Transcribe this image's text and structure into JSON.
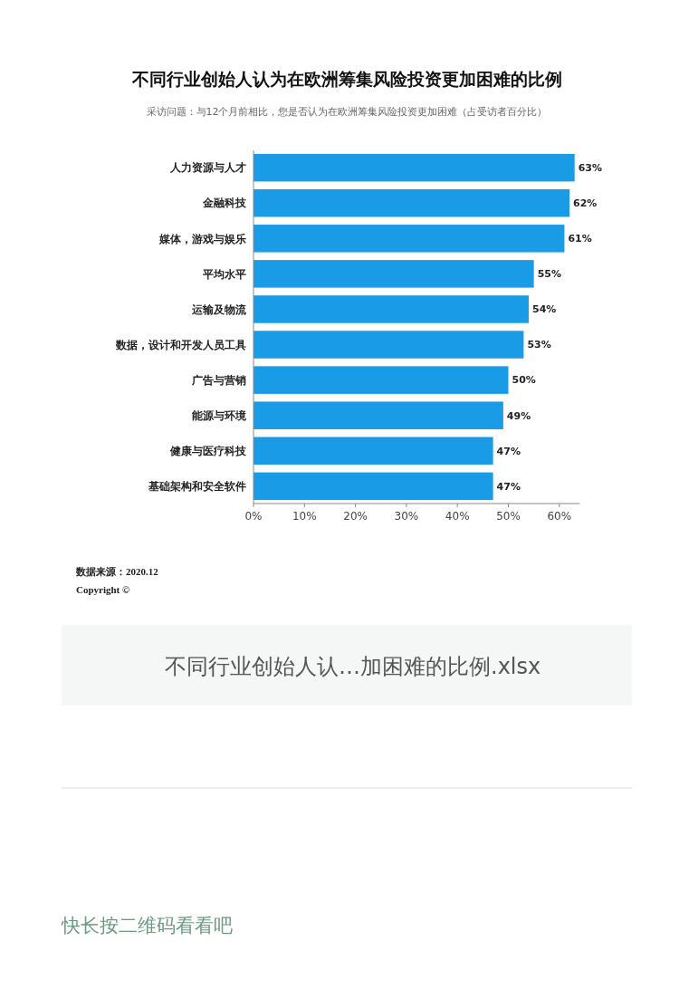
{
  "chart_data": {
    "type": "bar",
    "orientation": "horizontal",
    "title": "不同行业创始人认为在欧洲筹集风险投资更加困难的比例",
    "subtitle": "采访问题：与12个月前相比，您是否认为在欧洲筹集风险投资更加困难（占受访者百分比）",
    "categories": [
      "人力资源与人才",
      "金融科技",
      "媒体，游戏与娱乐",
      "平均水平",
      "运输及物流",
      "数据，设计和开发人员工具",
      "广告与营销",
      "能源与环境",
      "健康与医疗科技",
      "基础架构和安全软件"
    ],
    "values": [
      63,
      62,
      61,
      55,
      54,
      53,
      50,
      49,
      47,
      47
    ],
    "value_labels": [
      "63%",
      "62%",
      "61%",
      "55%",
      "54%",
      "53%",
      "50%",
      "49%",
      "47%",
      "47%"
    ],
    "color": "#1a9be6",
    "xlim": [
      0,
      64
    ],
    "xticks": [
      {
        "value": 0,
        "label": "0%"
      },
      {
        "value": 10,
        "label": "10%"
      },
      {
        "value": 20,
        "label": "20%"
      },
      {
        "value": 30,
        "label": "30%"
      },
      {
        "value": 40,
        "label": "40%"
      },
      {
        "value": 50,
        "label": "50%"
      },
      {
        "value": 60,
        "label": "60%"
      }
    ],
    "grid": false,
    "annotations": [
      "数据来源：2020.12",
      "Copyright ©",
      "不同行业创始人认…加困难的比例.xlsx",
      "快长按二维码看看吧"
    ]
  }
}
